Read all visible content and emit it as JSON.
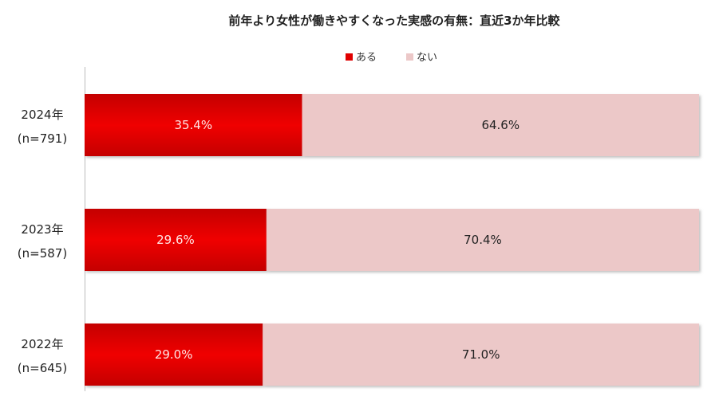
{
  "chart_data": {
    "type": "bar",
    "orientation": "horizontal",
    "stacked": "percent",
    "title": "前年より女性が働きやすくなった実感の有無：直近3か年比較",
    "categories": [
      {
        "year": "2024年",
        "n": "(n=791)"
      },
      {
        "year": "2023年",
        "n": "(n=587)"
      },
      {
        "year": "2022年",
        "n": "(n=645)"
      }
    ],
    "series": [
      {
        "name": "ある",
        "color": "#e00000",
        "label_color": "#ffe6e6",
        "values": [
          35.4,
          29.6,
          29.0
        ],
        "labels": [
          "35.4%",
          "29.6%",
          "29.0%"
        ]
      },
      {
        "name": "ない",
        "color": "#ecc8c8",
        "label_color": "#222222",
        "values": [
          64.6,
          70.4,
          71.0
        ],
        "labels": [
          "64.6%",
          "70.4%",
          "71.0%"
        ]
      }
    ],
    "xlim": [
      0,
      100
    ],
    "legend_position": "top",
    "grid": false
  }
}
